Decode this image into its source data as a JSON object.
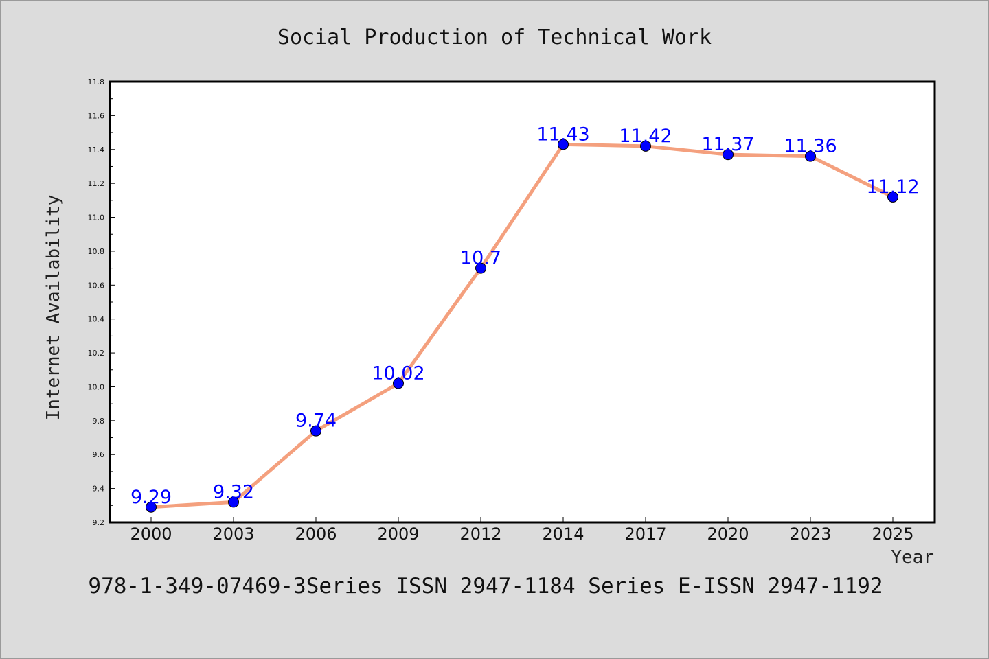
{
  "chart_data": {
    "type": "line",
    "title": "Social Production of Technical Work",
    "xlabel": "Year",
    "ylabel": "Internet Availability",
    "categories": [
      "2000",
      "2003",
      "2006",
      "2009",
      "2012",
      "2014",
      "2017",
      "2020",
      "2023",
      "2025"
    ],
    "series": [
      {
        "values": [
          9.29,
          9.32,
          9.74,
          10.02,
          10.7,
          11.43,
          11.42,
          11.37,
          11.36,
          11.12
        ],
        "data_labels": [
          "9.29",
          "9.32",
          "9.74",
          "10.02",
          "10.7",
          "11.43",
          "11.42",
          "11.37",
          "11.36",
          "11.12"
        ],
        "line_color": "#f4a07e",
        "marker_color": "#0000ff"
      }
    ],
    "ylim": [
      9.2,
      11.8
    ],
    "yticks": [
      "9.2",
      "9.4",
      "9.6",
      "9.8",
      "10.0",
      "10.2",
      "10.4",
      "10.6",
      "10.8",
      "11.0",
      "11.2",
      "11.4",
      "11.6",
      "11.8"
    ],
    "grid": false,
    "plot_background": "#ffffff"
  },
  "footer": "978-1-349-07469-3Series ISSN 2947-1184 Series E-ISSN 2947-1192"
}
